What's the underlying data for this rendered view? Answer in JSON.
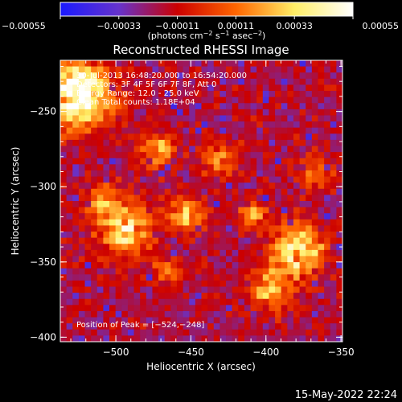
{
  "chart_data": {
    "type": "heatmap",
    "title": "Reconstructed RHESSI Image",
    "xlabel": "Heliocentric X (arcsec)",
    "ylabel": "Heliocentric Y (arcsec)",
    "xlim": [
      -537,
      -349
    ],
    "ylim": [
      -403,
      -216
    ],
    "xticks": [
      -500,
      -450,
      -400,
      -350
    ],
    "xtick_labels": [
      "−500",
      "−450",
      "−400",
      "−350"
    ],
    "yticks": [
      -400,
      -350,
      -300,
      -250
    ],
    "ytick_labels": [
      "−400",
      "−350",
      "−300",
      "−250"
    ],
    "colorbar": {
      "min": -0.00055,
      "max": 0.00055,
      "ticks": [
        -0.00055,
        -0.00033,
        -0.00011,
        0.00011,
        0.00033,
        0.00055
      ],
      "tick_labels": [
        "−0.00055",
        "−0.00033",
        "−0.00011",
        "0.00011",
        "0.00033",
        "0.00055"
      ],
      "unit_label_parts": [
        "(photons cm",
        "−2",
        " s",
        "−1",
        " asec",
        "−2",
        ")"
      ],
      "colors": [
        "#1a1aff",
        "#6633cc",
        "#cc0000",
        "#ff6600",
        "#ffee66",
        "#ffffff"
      ]
    },
    "info_lines": [
      "30-Jul-2013 16:48:20.000 to 16:54:20.000",
      "Detectors: 3F 4F 5F 6F 7F 8F, Att 0",
      "Energy Range: 12.0 - 25.0 keV",
      "Clean    Total counts: 1.18E+04"
    ],
    "peak_label": "Position of Peak = [−524,−248]",
    "peak": [
      -524,
      -248
    ]
  },
  "footer": {
    "timestamp": "15-May-2022 22:24"
  }
}
